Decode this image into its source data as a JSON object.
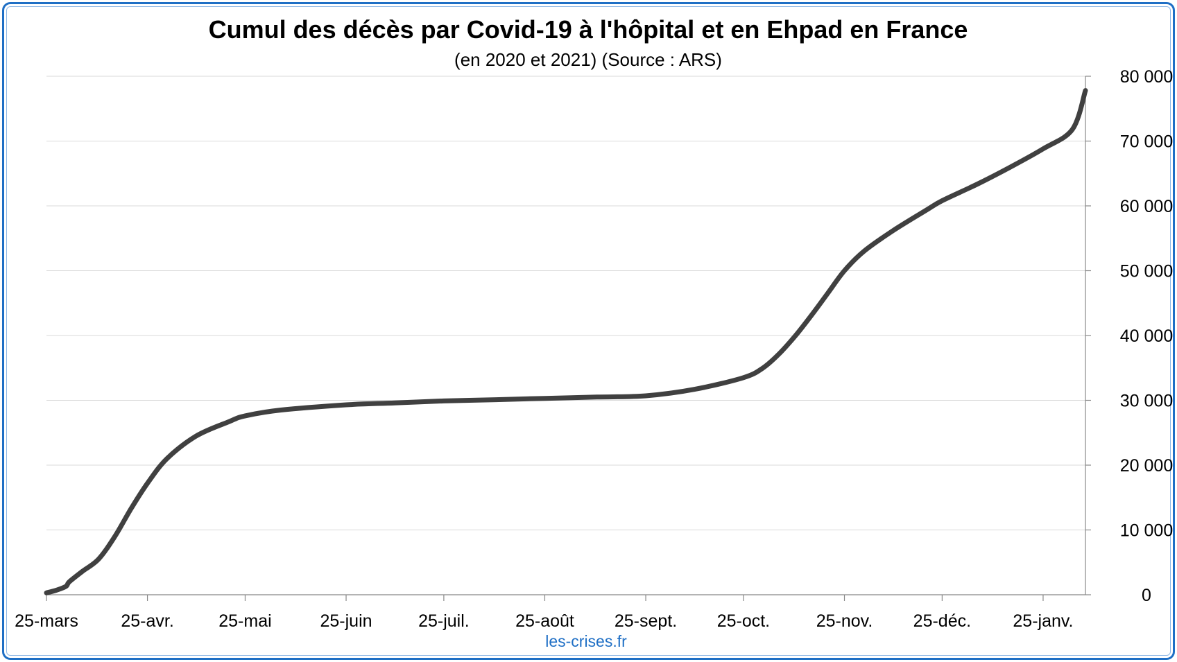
{
  "chart_data": {
    "type": "line",
    "title": "Cumul des décès par Covid-19 à l'hôpital et en Ehpad en France",
    "subtitle": "(en 2020 et 2021) (Source : ARS)",
    "source_label": "les-crises.fr",
    "xlabel": "",
    "ylabel": "",
    "x_tick_labels": [
      "25-mars",
      "25-avr.",
      "25-mai",
      "25-juin",
      "25-juil.",
      "25-août",
      "25-sept.",
      "25-oct.",
      "25-nov.",
      "25-déc.",
      "25-janv."
    ],
    "y_tick_labels": [
      "0",
      "10 000",
      "20 000",
      "30 000",
      "40 000",
      "50 000",
      "60 000",
      "70 000",
      "80 000"
    ],
    "ylim": [
      0,
      80000
    ],
    "y_axis_side": "right",
    "grid": true,
    "line_color": "#404040",
    "series": [
      {
        "x": [
          "2020-03-25",
          "2020-03-28",
          "2020-03-31",
          "2020-04-01",
          "2020-04-05",
          "2020-04-10",
          "2020-04-15",
          "2020-04-20",
          "2020-04-25",
          "2020-05-01",
          "2020-05-10",
          "2020-05-20",
          "2020-05-25",
          "2020-06-05",
          "2020-06-25",
          "2020-07-10",
          "2020-07-25",
          "2020-08-10",
          "2020-08-25",
          "2020-09-10",
          "2020-09-25",
          "2020-10-10",
          "2020-10-25",
          "2020-10-31",
          "2020-11-05",
          "2020-11-10",
          "2020-11-15",
          "2020-11-20",
          "2020-11-25",
          "2020-12-01",
          "2020-12-10",
          "2020-12-20",
          "2020-12-25",
          "2021-01-05",
          "2021-01-15",
          "2021-01-25",
          "2021-02-03",
          "2021-02-07"
        ],
        "values": [
          300,
          700,
          1300,
          2000,
          3600,
          5500,
          9000,
          13300,
          17200,
          21000,
          24500,
          26700,
          27600,
          28500,
          29300,
          29600,
          29900,
          30100,
          30300,
          30500,
          30700,
          31700,
          33500,
          35000,
          37200,
          40000,
          43200,
          46600,
          50000,
          53000,
          56200,
          59300,
          60800,
          63400,
          66000,
          68800,
          71800,
          77800
        ]
      }
    ]
  }
}
